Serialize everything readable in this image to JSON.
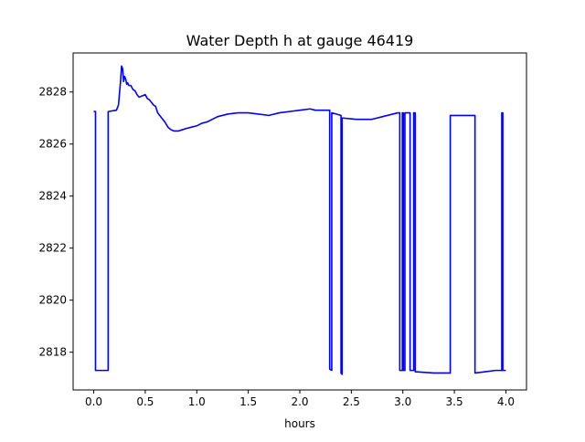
{
  "chart_data": {
    "type": "line",
    "title": "Water Depth h at gauge 46419",
    "xlabel": "hours",
    "ylabel": "",
    "xlim": [
      -0.2,
      4.2
    ],
    "ylim": [
      2816.55,
      2829.5
    ],
    "xticks": [
      0.0,
      0.5,
      1.0,
      1.5,
      2.0,
      2.5,
      3.0,
      3.5,
      4.0
    ],
    "xtick_labels": [
      "0.0",
      "0.5",
      "1.0",
      "1.5",
      "2.0",
      "2.5",
      "3.0",
      "3.5",
      "4.0"
    ],
    "yticks": [
      2818,
      2820,
      2822,
      2824,
      2826,
      2828
    ],
    "ytick_labels": [
      "2818",
      "2820",
      "2822",
      "2824",
      "2826",
      "2828"
    ],
    "grid": false,
    "legend": "none",
    "series": [
      {
        "name": "",
        "color": "#0000ff",
        "x": [
          0.0,
          0.017,
          0.017,
          0.14,
          0.14,
          0.22,
          0.24,
          0.26,
          0.27,
          0.28,
          0.29,
          0.3,
          0.31,
          0.32,
          0.33,
          0.34,
          0.36,
          0.38,
          0.4,
          0.42,
          0.44,
          0.47,
          0.5,
          0.52,
          0.54,
          0.56,
          0.58,
          0.6,
          0.62,
          0.64,
          0.66,
          0.69,
          0.72,
          0.75,
          0.78,
          0.82,
          0.86,
          0.9,
          0.95,
          1.0,
          1.05,
          1.1,
          1.15,
          1.2,
          1.3,
          1.4,
          1.5,
          1.6,
          1.7,
          1.8,
          1.9,
          2.0,
          2.1,
          2.15,
          2.2,
          2.25,
          2.29,
          2.29,
          2.31,
          2.31,
          2.4,
          2.4,
          2.41,
          2.41,
          2.42,
          2.42,
          2.55,
          2.7,
          2.8,
          2.95,
          2.97,
          2.97,
          2.995,
          2.995,
          3.005,
          3.005,
          3.02,
          3.02,
          3.07,
          3.07,
          3.105,
          3.105,
          3.12,
          3.12,
          3.3,
          3.46,
          3.46,
          3.7,
          3.7,
          3.8,
          3.9,
          3.96,
          3.96,
          3.97,
          3.97,
          4.0
        ],
        "y": [
          2827.25,
          2827.25,
          2817.3,
          2817.3,
          2827.25,
          2827.3,
          2827.5,
          2828.4,
          2829.0,
          2828.9,
          2828.4,
          2828.6,
          2828.5,
          2828.3,
          2828.35,
          2828.25,
          2828.25,
          2828.1,
          2828.05,
          2827.9,
          2827.8,
          2827.85,
          2827.9,
          2827.75,
          2827.7,
          2827.6,
          2827.5,
          2827.45,
          2827.2,
          2827.1,
          2827.0,
          2826.85,
          2826.65,
          2826.55,
          2826.5,
          2826.5,
          2826.55,
          2826.6,
          2826.65,
          2826.7,
          2826.8,
          2826.85,
          2826.95,
          2827.05,
          2827.15,
          2827.2,
          2827.2,
          2827.15,
          2827.1,
          2827.2,
          2827.25,
          2827.3,
          2827.35,
          2827.3,
          2827.3,
          2827.3,
          2827.3,
          2817.35,
          2817.3,
          2827.2,
          2827.1,
          2817.2,
          2817.15,
          2827.0,
          2827.0,
          2827.0,
          2826.95,
          2826.95,
          2827.05,
          2827.2,
          2827.2,
          2817.3,
          2817.3,
          2827.2,
          2827.2,
          2817.3,
          2817.3,
          2827.2,
          2827.2,
          2817.3,
          2817.3,
          2827.2,
          2827.2,
          2817.25,
          2817.2,
          2817.2,
          2827.1,
          2827.1,
          2817.2,
          2817.25,
          2817.3,
          2817.3,
          2827.2,
          2827.2,
          2817.3,
          2817.3
        ]
      }
    ]
  }
}
